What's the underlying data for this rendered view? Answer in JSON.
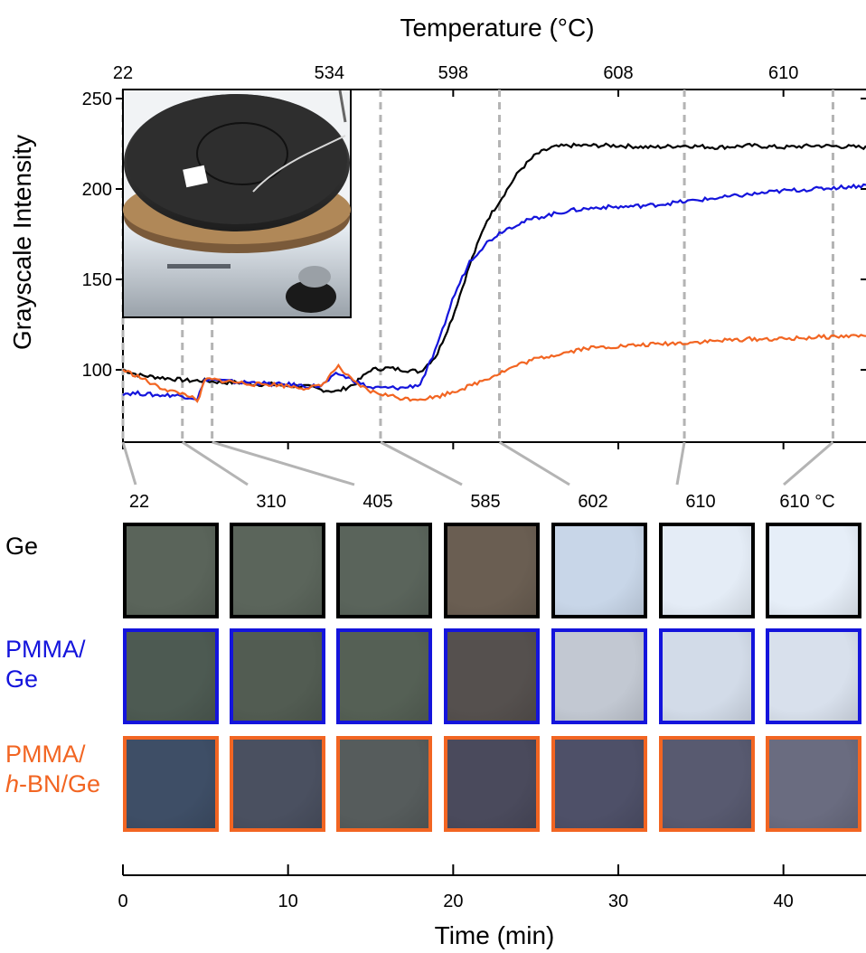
{
  "chart_data": {
    "type": "line",
    "title": "",
    "xlabel": "Time (min)",
    "ylabel": "Grayscale Intensity",
    "top_axis_label": "Temperature (°C)",
    "xlim": [
      0,
      45
    ],
    "ylim": [
      60,
      255
    ],
    "x_ticks": [
      "0",
      "10",
      "20",
      "30",
      "40"
    ],
    "y_ticks": [
      "100",
      "150",
      "200",
      "250"
    ],
    "top_ticks": [
      "22",
      "534",
      "598",
      "608",
      "610"
    ],
    "top_tick_times": [
      0,
      12.5,
      20,
      30,
      40
    ],
    "legend_position": "rows at left of image panels",
    "series": [
      {
        "name": "Ge",
        "color": "#000000",
        "x": [
          0,
          1,
          2,
          3,
          4,
          5,
          6,
          7,
          8,
          9,
          10,
          11,
          12,
          13,
          14,
          15,
          16,
          17,
          18,
          19,
          20,
          21,
          22,
          23,
          24,
          25,
          26,
          27,
          28,
          29,
          30,
          32,
          34,
          36,
          38,
          40,
          42,
          45
        ],
        "y": [
          100,
          97,
          96,
          95,
          94,
          94,
          93,
          93,
          92,
          92,
          91,
          91,
          89,
          88,
          92,
          100,
          101,
          100,
          99,
          108,
          130,
          158,
          182,
          196,
          210,
          219,
          223,
          224,
          224,
          224,
          224,
          223,
          224,
          223,
          224,
          223,
          224,
          223
        ]
      },
      {
        "name": "PMMA/Ge",
        "color": "#1414dc",
        "x": [
          0,
          1,
          2,
          3,
          4,
          4.5,
          5,
          6,
          7,
          8,
          9,
          10,
          11,
          12,
          13,
          14,
          15,
          16,
          17,
          18,
          19,
          20,
          21,
          22,
          23,
          24,
          25,
          26,
          27,
          28,
          29,
          30,
          32,
          34,
          36,
          38,
          40,
          42,
          45
        ],
        "y": [
          87,
          87,
          86,
          86,
          85,
          84,
          95,
          94,
          93,
          93,
          92,
          92,
          91,
          91,
          98,
          94,
          90,
          90,
          90,
          92,
          112,
          140,
          160,
          170,
          177,
          181,
          184,
          186,
          188,
          189,
          190,
          190,
          191,
          193,
          195,
          197,
          199,
          200,
          202
        ]
      },
      {
        "name": "PMMA/h-BN/Ge",
        "color": "#f26522",
        "x": [
          0,
          1,
          2,
          3,
          4,
          4.5,
          5,
          6,
          7,
          8,
          9,
          10,
          11,
          12,
          13,
          14,
          15,
          16,
          17,
          18,
          19,
          20,
          21,
          22,
          23,
          24,
          25,
          26,
          27,
          28,
          30,
          32,
          34,
          36,
          38,
          40,
          42,
          45
        ],
        "y": [
          100,
          96,
          91,
          88,
          86,
          82,
          95,
          94,
          93,
          92,
          92,
          91,
          90,
          91,
          102,
          93,
          88,
          86,
          84,
          84,
          85,
          88,
          91,
          95,
          99,
          103,
          106,
          108,
          110,
          112,
          113,
          114,
          115,
          116,
          117,
          117,
          118,
          119
        ]
      }
    ],
    "snapshot_times": [
      0,
      3.6,
      5.4,
      15.6,
      22.8,
      34,
      43
    ],
    "snapshot_temperatures": [
      "22",
      "310",
      "405",
      "585",
      "602",
      "610",
      "610 °C"
    ],
    "rows": [
      {
        "label_lines": [
          "Ge"
        ],
        "color": "#000000",
        "border": "#000000",
        "fills": [
          "#5a645a",
          "#5b655b",
          "#5a645b",
          "#6a5e52",
          "#c8d6e8",
          "#e4ecf6",
          "#e6eef8"
        ]
      },
      {
        "label_lines": [
          "PMMA/",
          "Ge"
        ],
        "color": "#1414dc",
        "border": "#1414dc",
        "fills": [
          "#4d5a52",
          "#525c52",
          "#556055",
          "#55504e",
          "#c2c8d2",
          "#d2dbe8",
          "#d8e0ec"
        ]
      },
      {
        "label_lines": [
          "PMMA/",
          "h-BN/Ge"
        ],
        "color": "#f26522",
        "border": "#f26522",
        "fills": [
          "#3e4e66",
          "#4a5060",
          "#565c5c",
          "#4a4a5c",
          "#4e5068",
          "#585a70",
          "#6a6c80"
        ]
      }
    ]
  }
}
